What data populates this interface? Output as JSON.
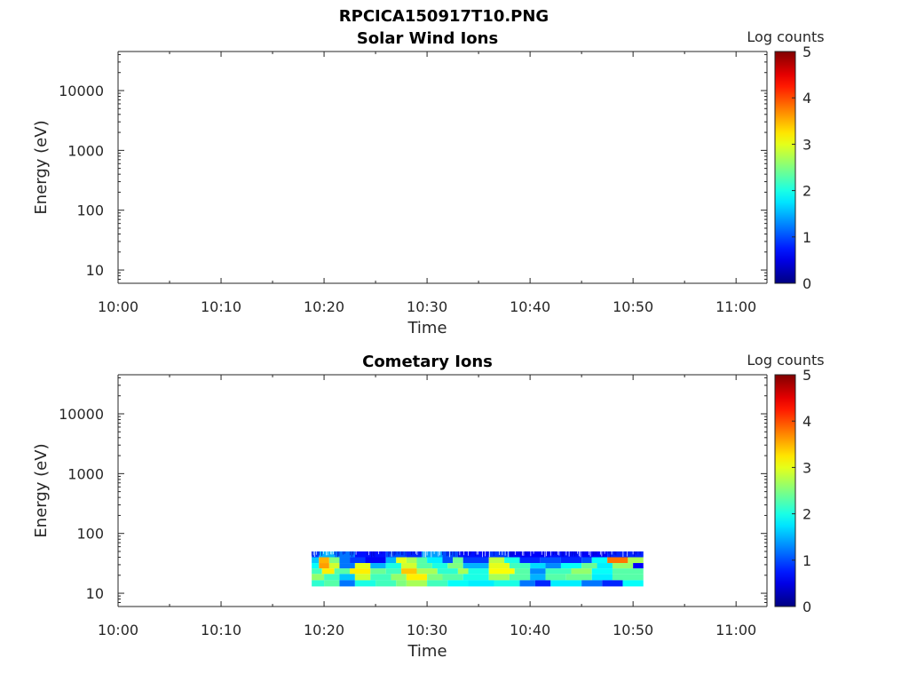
{
  "figure_title": "RPCICA150917T10.PNG",
  "chart_data": [
    {
      "type": "heatmap",
      "title": "Solar Wind Ions",
      "xlabel": "Time",
      "ylabel": "Energy (eV)",
      "x_ticks": [
        "10:00",
        "10:10",
        "10:20",
        "10:30",
        "10:40",
        "10:50",
        "11:00"
      ],
      "x_range_minutes": [
        0,
        63
      ],
      "y_scale": "log",
      "y_ticks": [
        "10",
        "100",
        "1000",
        "10000"
      ],
      "y_range": [
        6,
        45000
      ],
      "colorbar": {
        "label": "Log counts",
        "range": [
          0,
          5
        ],
        "ticks": [
          "0",
          "1",
          "2",
          "3",
          "4",
          "5"
        ],
        "colormap": "jet"
      },
      "data_rows": []
    },
    {
      "type": "heatmap",
      "title": "Cometary Ions",
      "xlabel": "Time",
      "ylabel": "Energy (eV)",
      "x_ticks": [
        "10:00",
        "10:10",
        "10:20",
        "10:30",
        "10:40",
        "10:50",
        "11:00"
      ],
      "x_range_minutes": [
        0,
        63
      ],
      "y_scale": "log",
      "y_ticks": [
        "10",
        "100",
        "1000",
        "10000"
      ],
      "y_range": [
        6,
        45000
      ],
      "colorbar": {
        "label": "Log counts",
        "range": [
          0,
          5
        ],
        "ticks": [
          "0",
          "1",
          "2",
          "3",
          "4",
          "5"
        ],
        "colormap": "jet"
      },
      "data_rows": [
        {
          "energy_low": 40,
          "energy_high": 50,
          "segments": [
            [
              18.8,
              19.5,
              0.9
            ],
            [
              19.5,
              21.0,
              1.5
            ],
            [
              21.0,
              23.0,
              1.2
            ],
            [
              23.0,
              26.0,
              0.7
            ],
            [
              26.0,
              28.0,
              1.0
            ],
            [
              28.0,
              29.5,
              0.8
            ],
            [
              29.5,
              31.5,
              1.4
            ],
            [
              31.5,
              33.0,
              1.0
            ],
            [
              33.0,
              36.0,
              0.7
            ],
            [
              36.0,
              38.0,
              0.9
            ],
            [
              38.0,
              42.0,
              0.6
            ],
            [
              42.0,
              45.0,
              0.7
            ],
            [
              45.0,
              47.5,
              0.6
            ],
            [
              47.5,
              51.0,
              0.8
            ]
          ]
        },
        {
          "energy_low": 32,
          "energy_high": 40,
          "segments": [
            [
              18.8,
              19.5,
              1.6
            ],
            [
              19.5,
              20.5,
              3.5
            ],
            [
              20.5,
              21.5,
              2.5
            ],
            [
              21.5,
              22.5,
              1.2
            ],
            [
              22.5,
              24.0,
              0.9
            ],
            [
              24.0,
              26.0,
              0.6
            ],
            [
              26.0,
              27.0,
              1.5
            ],
            [
              27.0,
              28.0,
              3.0
            ],
            [
              28.0,
              29.0,
              2.7
            ],
            [
              29.0,
              30.0,
              2.3
            ],
            [
              30.0,
              31.5,
              1.8
            ],
            [
              31.5,
              32.5,
              1.0
            ],
            [
              32.5,
              33.5,
              2.4
            ],
            [
              33.5,
              36.0,
              0.9
            ],
            [
              36.0,
              37.5,
              2.8
            ],
            [
              37.5,
              39.0,
              2.0
            ],
            [
              39.0,
              41.0,
              0.8
            ],
            [
              41.0,
              43.0,
              1.0
            ],
            [
              43.0,
              45.0,
              0.8
            ],
            [
              45.0,
              46.0,
              1.0
            ],
            [
              46.0,
              47.5,
              1.9
            ],
            [
              47.5,
              49.5,
              3.8
            ],
            [
              49.5,
              51.0,
              2.7
            ]
          ]
        },
        {
          "energy_low": 26,
          "energy_high": 32,
          "segments": [
            [
              18.8,
              19.5,
              1.9
            ],
            [
              19.5,
              20.5,
              3.6
            ],
            [
              20.5,
              21.5,
              2.9
            ],
            [
              21.5,
              23.0,
              1.2
            ],
            [
              23.0,
              24.5,
              3.0
            ],
            [
              24.5,
              26.0,
              1.5
            ],
            [
              26.0,
              27.5,
              2.0
            ],
            [
              27.5,
              29.0,
              2.9
            ],
            [
              29.0,
              30.5,
              2.3
            ],
            [
              30.5,
              32.0,
              2.0
            ],
            [
              32.0,
              33.5,
              2.5
            ],
            [
              33.5,
              36.0,
              1.5
            ],
            [
              36.0,
              38.0,
              3.0
            ],
            [
              38.0,
              40.0,
              2.2
            ],
            [
              40.0,
              41.5,
              1.7
            ],
            [
              41.5,
              43.0,
              1.3
            ],
            [
              43.0,
              45.0,
              1.9
            ],
            [
              45.0,
              46.5,
              2.4
            ],
            [
              46.5,
              48.0,
              1.8
            ],
            [
              48.0,
              50.0,
              2.6
            ],
            [
              50.0,
              51.0,
              0.6
            ]
          ]
        },
        {
          "energy_low": 21,
          "energy_high": 26,
          "segments": [
            [
              18.8,
              19.8,
              2.2
            ],
            [
              19.8,
              21.0,
              3.2
            ],
            [
              21.0,
              22.5,
              2.3
            ],
            [
              22.5,
              24.5,
              3.2
            ],
            [
              24.5,
              26.0,
              2.4
            ],
            [
              26.0,
              27.5,
              2.2
            ],
            [
              27.5,
              29.0,
              3.4
            ],
            [
              29.0,
              31.0,
              2.7
            ],
            [
              31.0,
              33.0,
              2.1
            ],
            [
              33.0,
              34.0,
              2.7
            ],
            [
              34.0,
              36.0,
              2.0
            ],
            [
              36.0,
              38.5,
              3.1
            ],
            [
              38.5,
              40.0,
              2.3
            ],
            [
              40.0,
              41.5,
              1.3
            ],
            [
              41.5,
              44.0,
              2.2
            ],
            [
              44.0,
              46.0,
              2.6
            ],
            [
              46.0,
              48.0,
              1.9
            ],
            [
              48.0,
              51.0,
              2.3
            ]
          ]
        },
        {
          "energy_low": 16.5,
          "energy_high": 21,
          "segments": [
            [
              18.8,
              20.0,
              2.6
            ],
            [
              20.0,
              21.5,
              2.2
            ],
            [
              21.5,
              23.0,
              1.6
            ],
            [
              23.0,
              24.5,
              2.9
            ],
            [
              24.5,
              26.5,
              2.2
            ],
            [
              26.5,
              28.0,
              2.6
            ],
            [
              28.0,
              30.0,
              3.2
            ],
            [
              30.0,
              31.5,
              2.5
            ],
            [
              31.5,
              33.5,
              2.3
            ],
            [
              33.5,
              36.0,
              2.0
            ],
            [
              36.0,
              38.0,
              2.7
            ],
            [
              38.0,
              40.0,
              2.3
            ],
            [
              40.0,
              41.5,
              1.5
            ],
            [
              41.5,
              43.5,
              2.3
            ],
            [
              43.5,
              46.0,
              2.4
            ],
            [
              46.0,
              48.0,
              1.8
            ],
            [
              48.0,
              51.0,
              2.3
            ]
          ]
        },
        {
          "energy_low": 13,
          "energy_high": 16.5,
          "segments": [
            [
              18.8,
              20.0,
              2.1
            ],
            [
              20.0,
              21.5,
              2.3
            ],
            [
              21.5,
              23.0,
              1.2
            ],
            [
              23.0,
              25.0,
              2.0
            ],
            [
              25.0,
              27.0,
              2.2
            ],
            [
              27.0,
              28.0,
              2.5
            ],
            [
              28.0,
              30.0,
              2.7
            ],
            [
              30.0,
              32.0,
              2.2
            ],
            [
              32.0,
              34.0,
              1.9
            ],
            [
              34.0,
              36.5,
              1.8
            ],
            [
              36.5,
              39.0,
              2.0
            ],
            [
              39.0,
              40.5,
              1.2
            ],
            [
              40.5,
              42.0,
              0.8
            ],
            [
              42.0,
              45.0,
              1.8
            ],
            [
              45.0,
              47.0,
              1.2
            ],
            [
              47.0,
              49.0,
              0.8
            ],
            [
              49.0,
              51.0,
              1.9
            ]
          ]
        }
      ]
    }
  ]
}
